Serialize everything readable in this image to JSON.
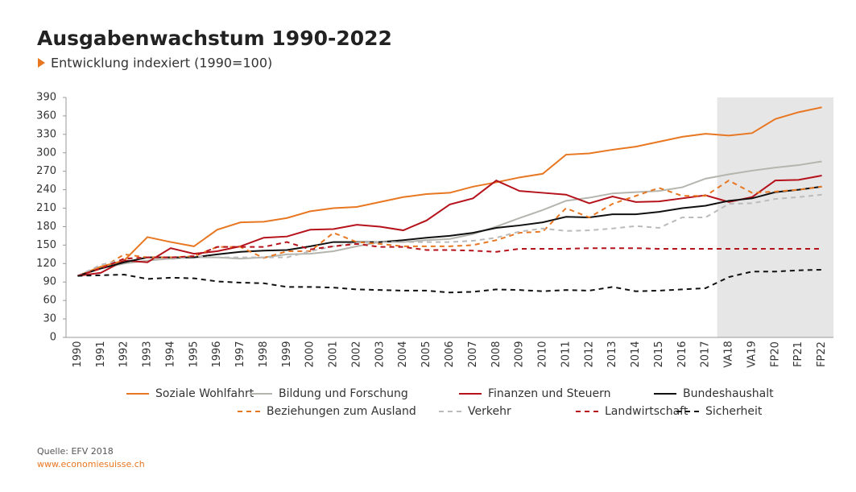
{
  "chart_data": {
    "type": "line",
    "title": "Ausgabenwachstum 1990-2022",
    "subtitle": "Entwicklung indexiert (1990=100)",
    "source": "Quelle: EFV 2018",
    "website": "www.economiesuisse.ch",
    "categories": [
      "1990",
      "1991",
      "1992",
      "1993",
      "1994",
      "1995",
      "1996",
      "1997",
      "1998",
      "1999",
      "2000",
      "2001",
      "2002",
      "2003",
      "2004",
      "2005",
      "2006",
      "2007",
      "2008",
      "2009",
      "2010",
      "2011",
      "2012",
      "2013",
      "2014",
      "2015",
      "2016",
      "2017",
      "VA18",
      "VA19",
      "FP20",
      "FP21",
      "FP22"
    ],
    "shade_from": "VA18",
    "ylim": [
      0,
      390
    ],
    "yticks": [
      0,
      30,
      60,
      90,
      120,
      150,
      180,
      210,
      240,
      270,
      300,
      330,
      360,
      390
    ],
    "series": [
      {
        "name": "Soziale Wohlfahrt",
        "color": "#e87722",
        "dashed": false,
        "values": [
          100,
          115,
          125,
          163,
          155,
          148,
          175,
          187,
          188,
          194,
          205,
          210,
          212,
          220,
          228,
          233,
          235,
          245,
          252,
          260,
          266,
          297,
          299,
          305,
          310,
          318,
          326,
          331,
          328,
          332,
          355,
          366,
          374
        ]
      },
      {
        "name": "Bildung und Forschung",
        "color": "#b5b5ae",
        "dashed": false,
        "values": [
          100,
          112,
          120,
          125,
          128,
          130,
          130,
          128,
          130,
          135,
          136,
          140,
          148,
          155,
          155,
          158,
          160,
          168,
          180,
          194,
          207,
          222,
          227,
          234,
          236,
          238,
          244,
          258,
          265,
          271,
          276,
          280,
          286
        ]
      },
      {
        "name": "Finanzen und Steuern",
        "color": "#b5121b",
        "dashed": false,
        "values": [
          100,
          105,
          125,
          122,
          145,
          136,
          140,
          148,
          162,
          164,
          175,
          176,
          183,
          180,
          174,
          190,
          216,
          226,
          255,
          238,
          235,
          232,
          218,
          229,
          220,
          221,
          226,
          231,
          220,
          228,
          255,
          256,
          263
        ]
      },
      {
        "name": "Bundeshaushalt",
        "color": "#111111",
        "dashed": false,
        "values": [
          100,
          112,
          122,
          130,
          130,
          130,
          135,
          139,
          141,
          142,
          148,
          155,
          155,
          155,
          158,
          162,
          165,
          170,
          178,
          182,
          187,
          196,
          195,
          200,
          200,
          204,
          210,
          214,
          222,
          226,
          236,
          240,
          245
        ]
      },
      {
        "name": "Beziehungen zum Ausland",
        "color": "#e87722",
        "dashed": true,
        "values": [
          100,
          112,
          135,
          130,
          130,
          132,
          147,
          147,
          129,
          140,
          140,
          170,
          155,
          152,
          148,
          148,
          148,
          150,
          158,
          170,
          172,
          210,
          195,
          217,
          230,
          243,
          230,
          230,
          255,
          235,
          237,
          240,
          245
        ]
      },
      {
        "name": "Verkehr",
        "color": "#bbbbbb",
        "dashed": true,
        "values": [
          100,
          118,
          127,
          130,
          127,
          132,
          130,
          130,
          130,
          130,
          140,
          148,
          154,
          155,
          155,
          155,
          155,
          157,
          162,
          172,
          177,
          173,
          174,
          177,
          181,
          178,
          195,
          195,
          217,
          218,
          225,
          228,
          232
        ]
      },
      {
        "name": "Landwirtschaft",
        "color": "#b5121b",
        "dashed": true,
        "values": [
          100,
          112,
          128,
          130,
          130,
          132,
          147,
          147,
          147,
          155,
          143,
          148,
          152,
          147,
          147,
          142,
          142,
          141,
          139,
          144,
          144,
          144,
          145,
          145,
          145,
          144,
          144,
          144,
          144,
          144,
          144,
          144,
          144
        ]
      },
      {
        "name": "Sicherheit",
        "color": "#111111",
        "dashed": true,
        "values": [
          100,
          101,
          102,
          95,
          97,
          96,
          91,
          89,
          88,
          82,
          82,
          81,
          78,
          77,
          76,
          76,
          73,
          74,
          78,
          77,
          75,
          77,
          76,
          82,
          75,
          76,
          78,
          80,
          98,
          107,
          107,
          109,
          110
        ]
      }
    ]
  }
}
